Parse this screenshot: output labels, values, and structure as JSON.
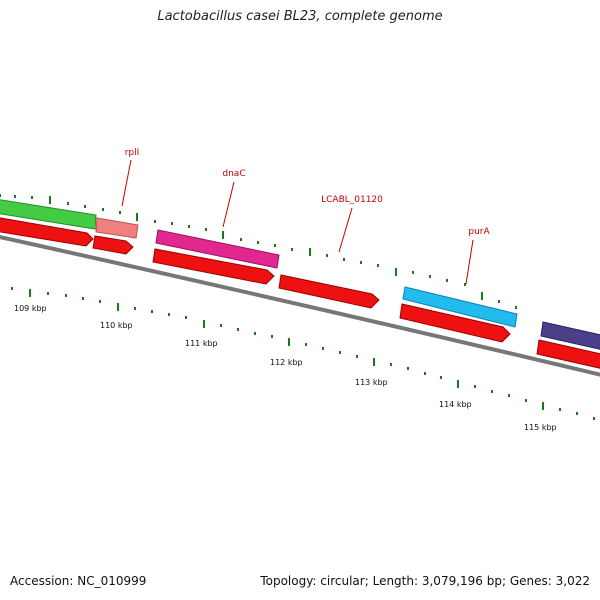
{
  "title": "Lactobacillus casei BL23, complete genome",
  "footer": {
    "accession_label": "Accession:",
    "accession": "NC_010999",
    "topology_label": "Topology:",
    "topology": "circular",
    "length_label": "Length:",
    "length": "3,079,196 bp",
    "genes_label": "Genes:",
    "genes": "3,022"
  },
  "colors": {
    "backbone": "#777777",
    "tick": "#1a7a1a",
    "cds_forward": "#ee1111",
    "label": "#cc0000"
  },
  "map": {
    "view_start_kbp": 108.6,
    "view_end_kbp": 115.8,
    "tick_labels": [
      "109 kbp",
      "110 kbp",
      "111 kbp",
      "112 kbp",
      "113 kbp",
      "114 kbp",
      "115 kbp"
    ],
    "gene_labels": [
      {
        "text": "rplI"
      },
      {
        "text": "dnaC"
      },
      {
        "text": "LCABL_01120"
      },
      {
        "text": "purA"
      }
    ],
    "genes_outer": [
      {
        "name": "unlabeled-green",
        "color": "#44cc44"
      },
      {
        "name": "rplI",
        "color": "#f08080"
      },
      {
        "name": "dnaC",
        "color": "#e0288f"
      },
      {
        "name": "purA",
        "color": "#22bbee"
      },
      {
        "name": "unlabeled-purple",
        "color": "#4b3f8a"
      }
    ],
    "cds_forward": [
      {
        "name": "cds-1"
      },
      {
        "name": "cds-2"
      },
      {
        "name": "cds-3"
      },
      {
        "name": "cds-4"
      },
      {
        "name": "cds-5"
      },
      {
        "name": "cds-6"
      }
    ]
  }
}
